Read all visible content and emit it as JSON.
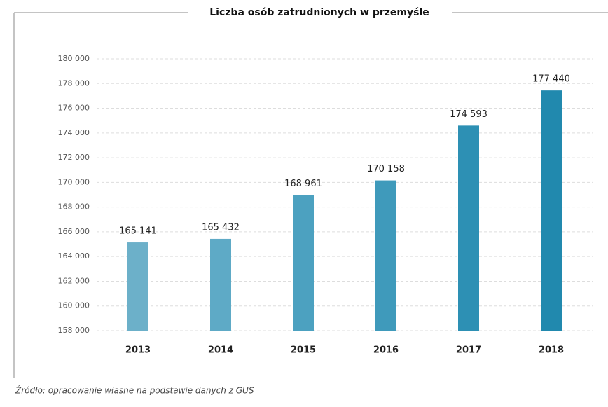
{
  "chart_data": {
    "type": "bar",
    "title": "Liczba osób zatrudnionych w przemyśle",
    "source": "Źródło: opracowanie własne na podstawie danych z GUS",
    "categories": [
      "2013",
      "2014",
      "2015",
      "2016",
      "2017",
      "2018"
    ],
    "values": [
      165141,
      165432,
      168961,
      170158,
      174593,
      177440
    ],
    "value_labels": [
      "165 141",
      "165 432",
      "168 961",
      "170 158",
      "174 593",
      "177 440"
    ],
    "colors": [
      "#6cb0c9",
      "#5eaac6",
      "#4ca1c0",
      "#3f9abb",
      "#2d90b4",
      "#2189ae"
    ],
    "ylim": [
      158000,
      180000
    ],
    "yticks": [
      {
        "value": 158000,
        "label": "158 000"
      },
      {
        "value": 160000,
        "label": "160 000"
      },
      {
        "value": 162000,
        "label": "162 000"
      },
      {
        "value": 164000,
        "label": "164 000"
      },
      {
        "value": 166000,
        "label": "166 000"
      },
      {
        "value": 168000,
        "label": "168 000"
      },
      {
        "value": 170000,
        "label": "170 000"
      },
      {
        "value": 172000,
        "label": "172 000"
      },
      {
        "value": 174000,
        "label": "174 000"
      },
      {
        "value": 176000,
        "label": "176 000"
      },
      {
        "value": 178000,
        "label": "178 000"
      },
      {
        "value": 180000,
        "label": "180 000"
      }
    ],
    "grid": true
  }
}
